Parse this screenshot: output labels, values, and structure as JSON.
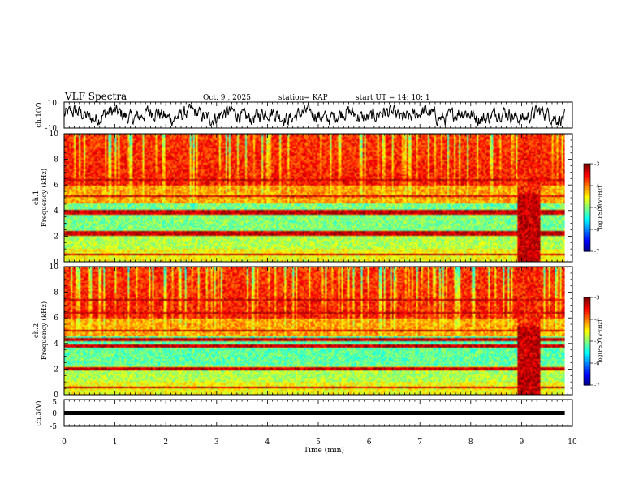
{
  "header": {
    "title": "VLF Spectra",
    "date": "Oct. 9 , 2025",
    "station": "station= KAP",
    "start": "start  UT  =   14: 10: 1"
  },
  "chart_data": [
    {
      "type": "line",
      "name": "ch1-waveform",
      "ylabel": "ch.1(V)",
      "ylim": [
        -10,
        10
      ],
      "yticks": [
        "10",
        "-10"
      ],
      "xlim": [
        0,
        9.85
      ],
      "note": "dense noisy waveform oscillating roughly between -6 and 6 V"
    },
    {
      "type": "heatmap",
      "name": "ch1-spectrogram",
      "ylabel": "ch.1\nFrequency  (kHz)",
      "ylim": [
        0,
        10
      ],
      "yticks": [
        "0",
        "2",
        "4",
        "6",
        "8",
        "10"
      ],
      "xlim": [
        0,
        9.85
      ],
      "colorbar": {
        "label": "log(PSD)(V²/Hz)",
        "range": [
          -7,
          -3
        ],
        "ticks": [
          "-3",
          "-4",
          "-5",
          "-6",
          "-7"
        ]
      },
      "bands_khz": [
        0.5,
        2.1,
        2.3,
        3.8,
        4.0,
        5.1,
        6.4
      ]
    },
    {
      "type": "heatmap",
      "name": "ch2-spectrogram",
      "ylabel": "ch.2\nFrequency  (kHz)",
      "ylim": [
        0,
        10
      ],
      "yticks": [
        "0",
        "2",
        "4",
        "6",
        "8",
        "10"
      ],
      "xlim": [
        0,
        9.85
      ],
      "colorbar": {
        "label": "log(PSD)(V²/Hz)",
        "range": [
          -7,
          -3
        ],
        "ticks": [
          "-3",
          "-4",
          "-5",
          "-6",
          "-7"
        ]
      },
      "bands_khz": [
        0.5,
        2.0,
        3.8,
        4.3,
        5.0,
        6.4,
        7.4
      ]
    },
    {
      "type": "line",
      "name": "ch3-waveform",
      "ylabel": "ch.3(V)",
      "ylim": [
        -5,
        5
      ],
      "yticks": [
        "5",
        "0",
        "-5"
      ],
      "xlim": [
        0,
        9.85
      ],
      "level": 0,
      "note": "constant thick trace near 0 V"
    }
  ],
  "xaxis": {
    "label": "Time  (min)",
    "ticks": [
      "0",
      "1",
      "2",
      "3",
      "4",
      "5",
      "6",
      "7",
      "8",
      "9",
      "10"
    ]
  }
}
